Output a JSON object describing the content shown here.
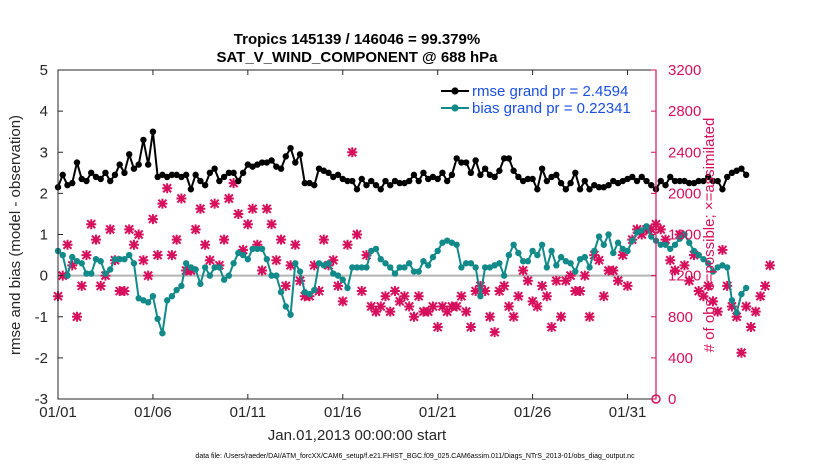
{
  "chart_data": {
    "type": "line",
    "title": "Tropics 145139 / 146046 = 99.379%",
    "subtitle": "SAT_V_WIND_COMPONENT @ 688 hPa",
    "xlabel": "Jan.01,2013 00:00:00 start",
    "ylabel_left": "rmse and bias (model - observation)",
    "ylabel_right": "# of obs: o=possible; ×=assimilated",
    "footnote": "data file: /Users/raeder/DAI/ATM_forcXX/CAM6_setup/f.e21.FHIST_BGC.f09_025.CAM6assim.011/Diags_NTrS_2013-01/obs_diag_output.nc",
    "x_range_days": [
      0,
      31.5
    ],
    "y_left_range": [
      -3,
      5
    ],
    "y_right_range": [
      0,
      3200
    ],
    "x_ticks": [
      {
        "day": 0,
        "label": "01/01"
      },
      {
        "day": 5,
        "label": "01/06"
      },
      {
        "day": 10,
        "label": "01/11"
      },
      {
        "day": 15,
        "label": "01/16"
      },
      {
        "day": 20,
        "label": "01/21"
      },
      {
        "day": 25,
        "label": "01/26"
      },
      {
        "day": 30,
        "label": "01/31"
      }
    ],
    "y_left_ticks": [
      -3,
      -2,
      -1,
      0,
      1,
      2,
      3,
      4,
      5
    ],
    "y_right_ticks": [
      0,
      400,
      800,
      1200,
      1600,
      2000,
      2400,
      2800,
      3200
    ],
    "colors": {
      "rmse": "#000000",
      "bias": "#138a8a",
      "obs": "#d6105c",
      "legend_text": "#1a4fe0",
      "zero_line": "#b3b3b3"
    },
    "series": [
      {
        "name": "rmse grand pr = 2.4594",
        "axis": "left",
        "step_days": 0.25,
        "values": [
          2.15,
          2.45,
          2.2,
          2.25,
          2.75,
          2.35,
          2.3,
          2.5,
          2.4,
          2.35,
          2.5,
          2.3,
          2.45,
          2.7,
          2.5,
          2.95,
          2.6,
          2.7,
          3.3,
          2.7,
          3.5,
          2.4,
          2.45,
          2.4,
          2.45,
          2.45,
          2.4,
          2.45,
          2.1,
          2.45,
          2.3,
          2.2,
          2.5,
          2.6,
          2.3,
          2.4,
          2.5,
          2.5,
          2.3,
          2.5,
          2.7,
          2.65,
          2.7,
          2.75,
          2.75,
          2.8,
          2.65,
          2.6,
          2.9,
          3.1,
          2.75,
          2.95,
          2.25,
          2.25,
          2.2,
          2.6,
          2.55,
          2.5,
          2.4,
          2.45,
          2.35,
          2.3,
          2.3,
          2.1,
          2.35,
          2.2,
          2.3,
          2.2,
          2.1,
          2.3,
          2.2,
          2.3,
          2.25,
          2.25,
          2.3,
          2.45,
          2.3,
          2.5,
          2.35,
          2.4,
          2.35,
          2.5,
          2.3,
          2.45,
          2.85,
          2.75,
          2.75,
          2.5,
          2.8,
          2.45,
          2.6,
          2.45,
          2.4,
          2.55,
          2.85,
          2.85,
          2.55,
          2.4,
          2.3,
          2.35,
          2.35,
          2.1,
          2.6,
          2.3,
          2.4,
          2.45,
          2.25,
          2.1,
          2.25,
          2.5,
          2.1,
          2.3,
          2.1,
          2.2,
          2.15,
          2.15,
          2.2,
          2.3,
          2.25,
          2.3,
          2.35,
          2.4,
          2.3,
          2.4,
          2.3,
          2.2,
          2.1,
          2.3,
          2.2,
          2.4,
          2.3,
          2.3,
          2.3,
          2.25,
          2.25,
          2.3,
          2.3,
          2.4,
          2.3,
          2.3,
          2.1,
          2.4,
          2.5,
          2.55,
          2.6,
          2.45
        ]
      },
      {
        "name": "bias grand pr = 0.22341",
        "axis": "left",
        "step_days": 0.25,
        "values": [
          0.6,
          0.5,
          0.0,
          0.45,
          0.35,
          0.3,
          0.05,
          0.05,
          0.4,
          0.35,
          0.05,
          0.15,
          0.4,
          0.4,
          0.4,
          0.5,
          0.3,
          -0.55,
          -0.6,
          -0.65,
          -0.5,
          -1.05,
          -1.4,
          -0.6,
          -0.5,
          -0.35,
          -0.25,
          0.3,
          0.2,
          0.15,
          -0.2,
          0.2,
          0.0,
          0.2,
          0.2,
          -0.1,
          0.0,
          0.3,
          0.55,
          0.5,
          0.4,
          0.65,
          0.65,
          0.65,
          0.4,
          0.0,
          0.0,
          -0.4,
          -0.75,
          -0.95,
          0.3,
          0.1,
          -0.4,
          -0.45,
          -0.35,
          0.3,
          0.25,
          0.3,
          0.05,
          0.0,
          -0.1,
          -0.3,
          0.2,
          0.2,
          0.2,
          0.2,
          0.6,
          0.65,
          0.4,
          0.3,
          0.2,
          0.05,
          0.2,
          0.2,
          0.3,
          0.1,
          0.1,
          0.35,
          0.25,
          0.45,
          0.6,
          0.8,
          0.85,
          0.8,
          0.75,
          0.2,
          0.3,
          0.3,
          0.2,
          -0.5,
          0.2,
          0.2,
          0.25,
          0.3,
          0.0,
          0.5,
          0.75,
          0.55,
          0.35,
          0.35,
          0.6,
          0.5,
          0.75,
          0.2,
          0.6,
          0.25,
          0.45,
          0.35,
          0.3,
          0.1,
          0.4,
          0.45,
          0.2,
          0.6,
          0.95,
          0.75,
          1.0,
          0.55,
          0.8,
          0.65,
          0.6,
          0.85,
          1.05,
          1.1,
          1.2,
          0.95,
          0.85,
          0.75,
          0.75,
          0.65,
          0.75,
          0.9,
          1.0,
          0.8,
          0.6,
          0.5,
          0.4,
          0.3,
          0.1,
          0.2,
          0.25,
          0.2,
          -0.6,
          -0.9,
          -0.45,
          -0.3
        ]
      },
      {
        "name": "# obs assimilated",
        "axis": "right",
        "marker": "×",
        "step_days": 0.25,
        "values": [
          1000,
          1200,
          1500,
          1300,
          800,
          1100,
          1400,
          1700,
          1550,
          1100,
          1200,
          1650,
          1350,
          1050,
          1050,
          1650,
          1500,
          1600,
          1350,
          1200,
          1750,
          1400,
          1900,
          2050,
          1400,
          1550,
          1950,
          1250,
          1250,
          1650,
          1850,
          1500,
          1350,
          1900,
          1300,
          1550,
          1950,
          2100,
          1800,
          1450,
          1700,
          1850,
          1500,
          1250,
          1850,
          1700,
          1350,
          1550,
          1100,
          1300,
          1500,
          1150,
          1000,
          1000,
          1300,
          1050,
          1550,
          1300,
          1350,
          1100,
          950,
          1500,
          2400,
          1600,
          1050,
          1400,
          900,
          850,
          900,
          1000,
          850,
          1050,
          950,
          1000,
          900,
          800,
          1000,
          850,
          850,
          900,
          700,
          900,
          850,
          900,
          900,
          1000,
          850,
          700,
          1050,
          1100,
          1050,
          800,
          650,
          1050,
          1100,
          900,
          800,
          1000,
          1250,
          1150,
          950,
          900,
          1100,
          1000,
          700,
          1150,
          800,
          1150,
          1200,
          1050,
          1050,
          1200,
          800,
          1400,
          1350,
          1000,
          1250,
          1250,
          1150,
          1400,
          1100,
          1550,
          1650,
          1600,
          1650,
          1650,
          1700,
          1650,
          1550,
          1350,
          1250,
          1600,
          1300,
          1150,
          1400,
          1050,
          1000,
          1100,
          950,
          850,
          1450,
          1100,
          900,
          800,
          450,
          900,
          700,
          850,
          1000,
          1100,
          1300
        ]
      }
    ]
  }
}
